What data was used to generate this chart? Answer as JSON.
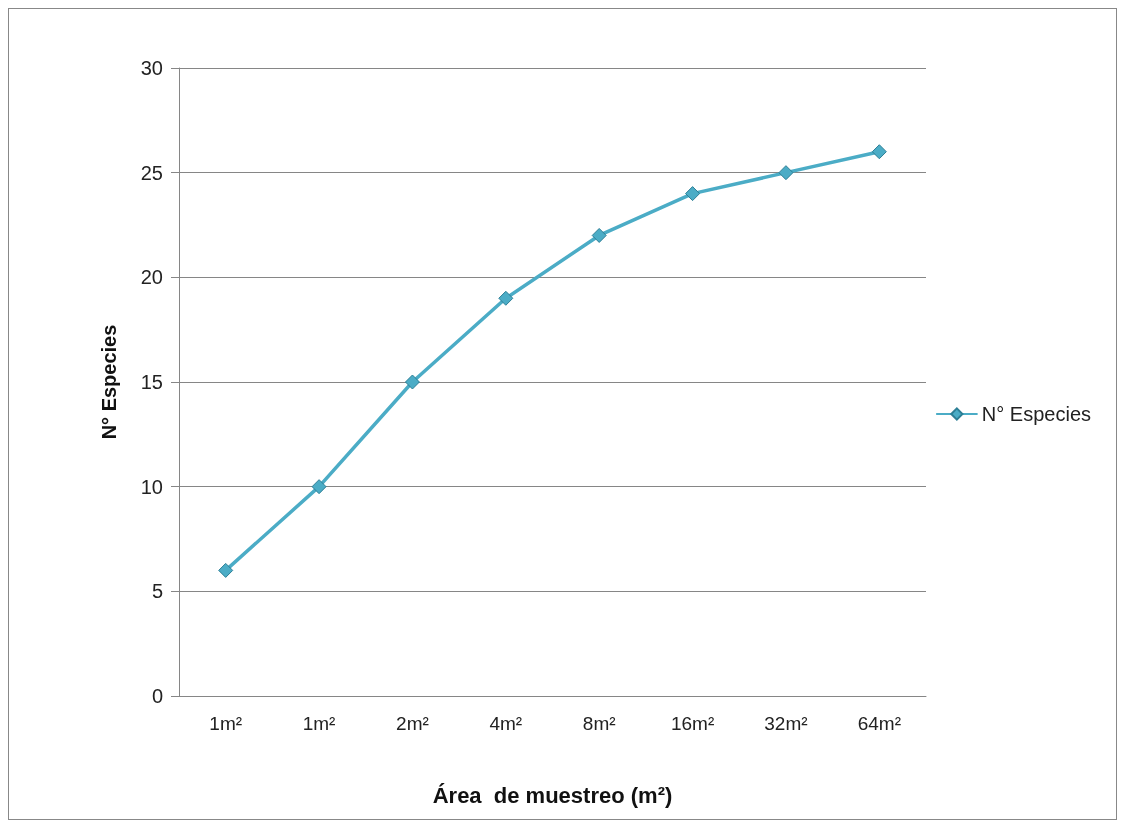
{
  "chart_data": {
    "type": "line",
    "xlabel": "Área  de muestreo (m²)",
    "ylabel": "N° Especies",
    "categories": [
      "1m²",
      "1m²",
      "2m²",
      "4m²",
      "8m²",
      "16m²",
      "32m²",
      "64m²"
    ],
    "series": [
      {
        "name": "N° Especies",
        "color": "#4bacc6",
        "values": [
          6,
          10,
          15,
          19,
          22,
          24,
          25,
          26
        ]
      }
    ],
    "ylim": [
      0,
      30
    ],
    "yticks": [
      0,
      5,
      10,
      15,
      20,
      25,
      30
    ],
    "grid": "y",
    "legend": "right",
    "marker": "diamond",
    "line_style": "solid"
  }
}
